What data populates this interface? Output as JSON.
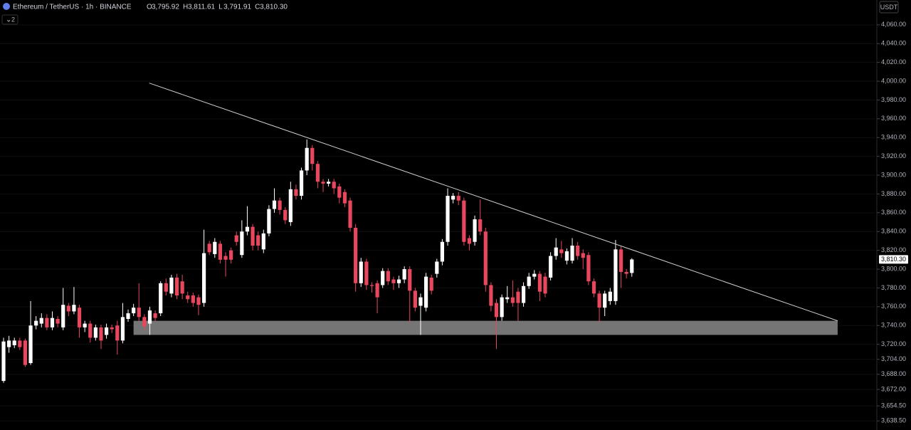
{
  "chart_data": {
    "type": "candlestick",
    "title": "Ethereum / TetherUS · 1h · BINANCE",
    "ohlc": [
      {
        "label": "O",
        "value": "3,795.92"
      },
      {
        "label": "H",
        "value": "3,811.61"
      },
      {
        "label": "L",
        "value": "3,791.91"
      },
      {
        "label": "C",
        "value": "3,810.30"
      }
    ],
    "legend_toggle": "2",
    "currency": "USDT",
    "last_price": {
      "value": 3810.3,
      "label": "3,810.30"
    },
    "up_color": "#ffffff",
    "down_color": "#e8475e",
    "grid": true,
    "ylim": [
      3628.8,
      4086.4
    ],
    "yticks": [
      {
        "value": 4060,
        "label": "4,060.00"
      },
      {
        "value": 4040,
        "label": "4,040.00"
      },
      {
        "value": 4020,
        "label": "4,020.00"
      },
      {
        "value": 4000,
        "label": "4,000.00"
      },
      {
        "value": 3980,
        "label": "3,980.00"
      },
      {
        "value": 3960,
        "label": "3,960.00"
      },
      {
        "value": 3940,
        "label": "3,940.00"
      },
      {
        "value": 3920,
        "label": "3,920.00"
      },
      {
        "value": 3900,
        "label": "3,900.00"
      },
      {
        "value": 3880,
        "label": "3,880.00"
      },
      {
        "value": 3860,
        "label": "3,860.00"
      },
      {
        "value": 3840,
        "label": "3,840.00"
      },
      {
        "value": 3820,
        "label": "3,820.00"
      },
      {
        "value": 3800,
        "label": "3,800.00"
      },
      {
        "value": 3780,
        "label": "3,780.00"
      },
      {
        "value": 3760,
        "label": "3,760.00"
      },
      {
        "value": 3740,
        "label": "3,740.00"
      },
      {
        "value": 3720,
        "label": "3,720.00"
      },
      {
        "value": 3704,
        "label": "3,704.00"
      },
      {
        "value": 3688,
        "label": "3,688.00"
      },
      {
        "value": 3672,
        "label": "3,672.00"
      },
      {
        "value": 3654.5,
        "label": "3,654.50"
      },
      {
        "value": 3638.5,
        "label": "3,638.50"
      }
    ],
    "trendline": {
      "x": [
        26.9,
        154
      ],
      "y": [
        3998,
        3745
      ]
    },
    "zone": {
      "x": [
        24,
        154
      ],
      "y": [
        3745,
        3730
      ]
    },
    "open": [
      3681,
      3717,
      3719,
      3724,
      3724,
      3700,
      3740,
      3742,
      3748,
      3738,
      3747,
      3738,
      3761,
      3755,
      3759,
      3738,
      3742,
      3727,
      3738,
      3730,
      3738,
      3740,
      3724,
      3747,
      3753,
      3759,
      3749,
      3742,
      3753,
      3753,
      3785,
      3774,
      3791,
      3787,
      3772,
      3772,
      3770,
      3764,
      3827,
      3816,
      3827,
      3814,
      3820,
      3836,
      3815,
      3840,
      3845,
      3836,
      3821,
      3838,
      3864,
      3873,
      3863,
      3850,
      3885,
      3878,
      3905,
      3929,
      3912,
      3893,
      3891,
      3893,
      3888,
      3882,
      3873,
      3844,
      3785,
      3808,
      3783,
      3785,
      3783,
      3798,
      3789,
      3785,
      3789,
      3800,
      3777,
      3761,
      3759,
      3791,
      3795,
      3808,
      3829,
      3874,
      3878,
      3873,
      3833,
      3829,
      3853,
      3840,
      3783,
      3764,
      3749,
      3768,
      3770,
      3776,
      3764,
      3782,
      3792,
      3795,
      3792,
      3791,
      3814,
      3821,
      3809,
      3809,
      3825,
      3817,
      3815,
      3787,
      3774,
      3759,
      3766,
      3766,
      3821,
      3797,
      3795.92
    ],
    "high": [
      3727,
      3729,
      3727,
      3727,
      3726,
      3766,
      3750,
      3753,
      3752,
      3755,
      3750,
      3780,
      3764,
      3781,
      3762,
      3745,
      3745,
      3741,
      3741,
      3742,
      3741,
      3745,
      3764,
      3757,
      3763,
      3785,
      3752,
      3760,
      3756,
      3787,
      3790,
      3794,
      3795,
      3794,
      3776,
      3775,
      3773,
      3842,
      3830,
      3833,
      3830,
      3818,
      3823,
      3840,
      3852,
      3867,
      3848,
      3840,
      3842,
      3868,
      3886,
      3876,
      3866,
      3893,
      3890,
      3908,
      3938,
      3932,
      3915,
      3896,
      3896,
      3896,
      3891,
      3885,
      3876,
      3848,
      3812,
      3811,
      3786,
      3788,
      3801,
      3801,
      3792,
      3793,
      3803,
      3803,
      3780,
      3774,
      3796,
      3794,
      3811,
      3832,
      3886,
      3881,
      3882,
      3876,
      3836,
      3857,
      3874,
      3844,
      3786,
      3768,
      3773,
      3782,
      3788,
      3780,
      3786,
      3796,
      3799,
      3798,
      3796,
      3818,
      3833,
      3830,
      3822,
      3833,
      3829,
      3821,
      3818,
      3790,
      3777,
      3777,
      3780,
      3831,
      3824,
      3800,
      3811.61
    ],
    "low": [
      3679,
      3711,
      3716,
      3714,
      3696,
      3698,
      3736,
      3738,
      3735,
      3735,
      3738,
      3735,
      3750,
      3752,
      3727,
      3733,
      3722,
      3724,
      3715,
      3726,
      3732,
      3709,
      3721,
      3744,
      3750,
      3745,
      3735,
      3730,
      3744,
      3750,
      3772,
      3770,
      3768,
      3768,
      3764,
      3760,
      3751,
      3760,
      3815,
      3812,
      3806,
      3792,
      3806,
      3825,
      3812,
      3836,
      3820,
      3820,
      3817,
      3835,
      3860,
      3858,
      3848,
      3846,
      3874,
      3874,
      3900,
      3905,
      3886,
      3882,
      3888,
      3880,
      3870,
      3866,
      3840,
      3776,
      3781,
      3778,
      3775,
      3753,
      3780,
      3783,
      3778,
      3780,
      3785,
      3743,
      3755,
      3730,
      3755,
      3773,
      3791,
      3804,
      3825,
      3870,
      3868,
      3825,
      3820,
      3825,
      3836,
      3776,
      3755,
      3715,
      3745,
      3764,
      3760,
      3745,
      3760,
      3779,
      3789,
      3766,
      3770,
      3788,
      3810,
      3812,
      3805,
      3806,
      3810,
      3800,
      3783,
      3770,
      3743,
      3750,
      3762,
      3762,
      3780,
      3790,
      3791.91
    ],
    "close": [
      3723,
      3724,
      3724,
      3717,
      3698,
      3740,
      3745,
      3748,
      3738,
      3748,
      3742,
      3762,
      3755,
      3762,
      3738,
      3742,
      3727,
      3738,
      3724,
      3738,
      3736,
      3724,
      3749,
      3753,
      3759,
      3749,
      3739,
      3756,
      3748,
      3785,
      3776,
      3791,
      3772,
      3774,
      3768,
      3764,
      3762,
      3817,
      3818,
      3829,
      3810,
      3810,
      3810,
      3829,
      3840,
      3845,
      3825,
      3825,
      3838,
      3864,
      3873,
      3863,
      3852,
      3885,
      3878,
      3905,
      3929,
      3912,
      3893,
      3891,
      3893,
      3886,
      3876,
      3870,
      3844,
      3785,
      3808,
      3783,
      3782,
      3770,
      3798,
      3787,
      3785,
      3789,
      3800,
      3777,
      3759,
      3770,
      3792,
      3777,
      3808,
      3829,
      3878,
      3878,
      3873,
      3829,
      3827,
      3853,
      3840,
      3783,
      3761,
      3749,
      3770,
      3770,
      3764,
      3764,
      3782,
      3792,
      3795,
      3776,
      3774,
      3814,
      3823,
      3817,
      3819,
      3825,
      3814,
      3812,
      3787,
      3774,
      3759,
      3774,
      3776,
      3821,
      3797,
      3795,
      3810.3
    ]
  }
}
